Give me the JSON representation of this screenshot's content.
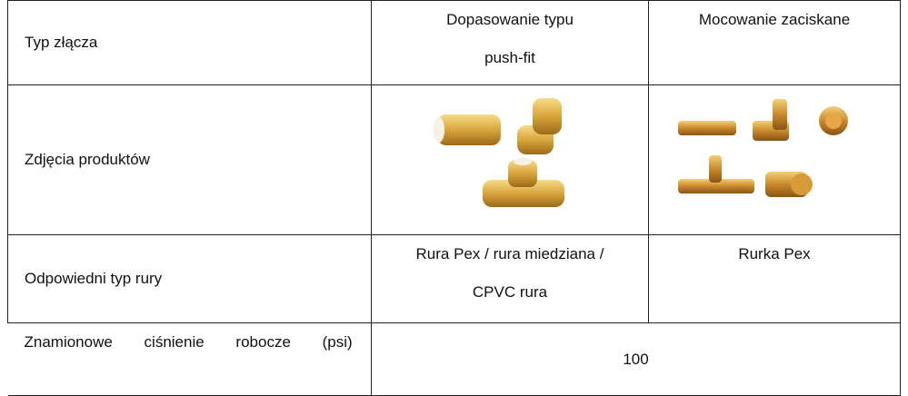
{
  "table": {
    "rows": [
      [
        "Typ złącza",
        "Dopasowanie typu push-fit",
        "Mocowanie zaciskane"
      ],
      [
        "Zdjęcia produktów"
      ],
      [
        "Odpowiedni typ rury",
        "Rura Pex / rura miedziana / CPVC rura",
        "Rurka Pex"
      ],
      [
        "Znamionowe ciśnienie robocze (psi)",
        100
      ]
    ]
  }
}
